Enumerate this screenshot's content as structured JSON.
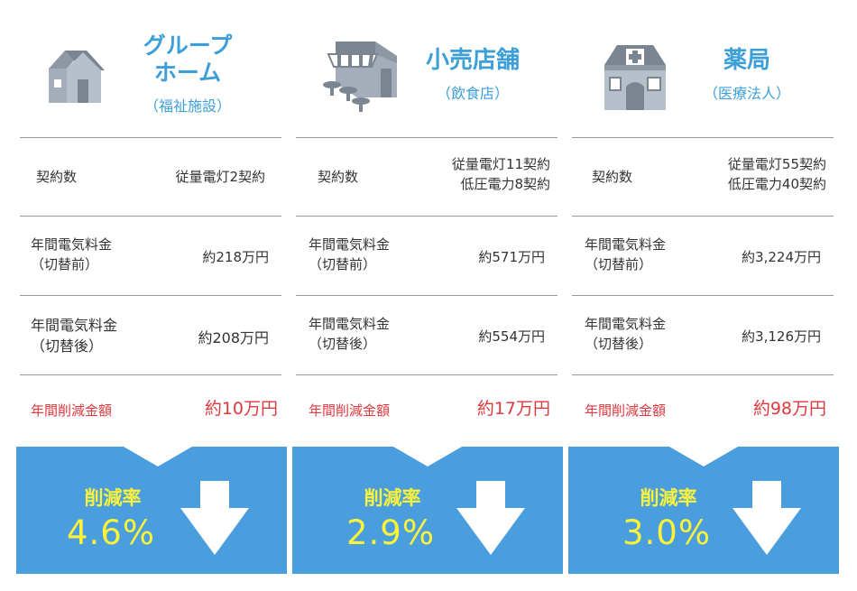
{
  "columns": [
    {
      "icon": "house-icon",
      "title_lines": [
        "グループ",
        "ホーム"
      ],
      "subtitle": "（福祉施設）",
      "rows": [
        {
          "label_lines": [
            "契約数"
          ],
          "value_lines": [
            "従量電灯2契約"
          ]
        },
        {
          "label_lines": [
            "年間電気料金",
            "（切替前）"
          ],
          "value_lines": [
            "約218万円"
          ]
        },
        {
          "label_lines": [
            "年間電気料金",
            "（切替後）"
          ],
          "value_lines": [
            "約208万円"
          ]
        }
      ],
      "savings": {
        "label": "年間削減金額",
        "value": "約10万円"
      },
      "rate": {
        "label": "削減率",
        "value": "4.6%"
      }
    },
    {
      "icon": "shop-icon",
      "title_lines": [
        "小売店舗"
      ],
      "subtitle": "（飲食店）",
      "rows": [
        {
          "label_lines": [
            "契約数"
          ],
          "value_lines": [
            "従量電灯11契約",
            "低圧電力8契約"
          ]
        },
        {
          "label_lines": [
            "年間電気料金",
            "（切替前）"
          ],
          "value_lines": [
            "約571万円"
          ]
        },
        {
          "label_lines": [
            "年間電気料金",
            "（切替後）"
          ],
          "value_lines": [
            "約554万円"
          ]
        }
      ],
      "savings": {
        "label": "年間削減金額",
        "value": "約17万円"
      },
      "rate": {
        "label": "削減率",
        "value": "2.9%"
      }
    },
    {
      "icon": "pharmacy-icon",
      "title_lines": [
        "薬局"
      ],
      "subtitle": "（医療法人）",
      "rows": [
        {
          "label_lines": [
            "契約数"
          ],
          "value_lines": [
            "従量電灯55契約",
            "低圧電力40契約"
          ]
        },
        {
          "label_lines": [
            "年間電気料金",
            "（切替前）"
          ],
          "value_lines": [
            "約3,224万円"
          ]
        },
        {
          "label_lines": [
            "年間電気料金",
            "（切替後）"
          ],
          "value_lines": [
            "約3,126万円"
          ]
        }
      ],
      "savings": {
        "label": "年間削減金額",
        "value": "約98万円"
      },
      "rate": {
        "label": "削減率",
        "value": "3.0%"
      }
    }
  ],
  "colors": {
    "accent": "#3d9fd8",
    "box": "#4a9edd",
    "highlight": "#fbf33a",
    "savings": "#e0393e"
  }
}
